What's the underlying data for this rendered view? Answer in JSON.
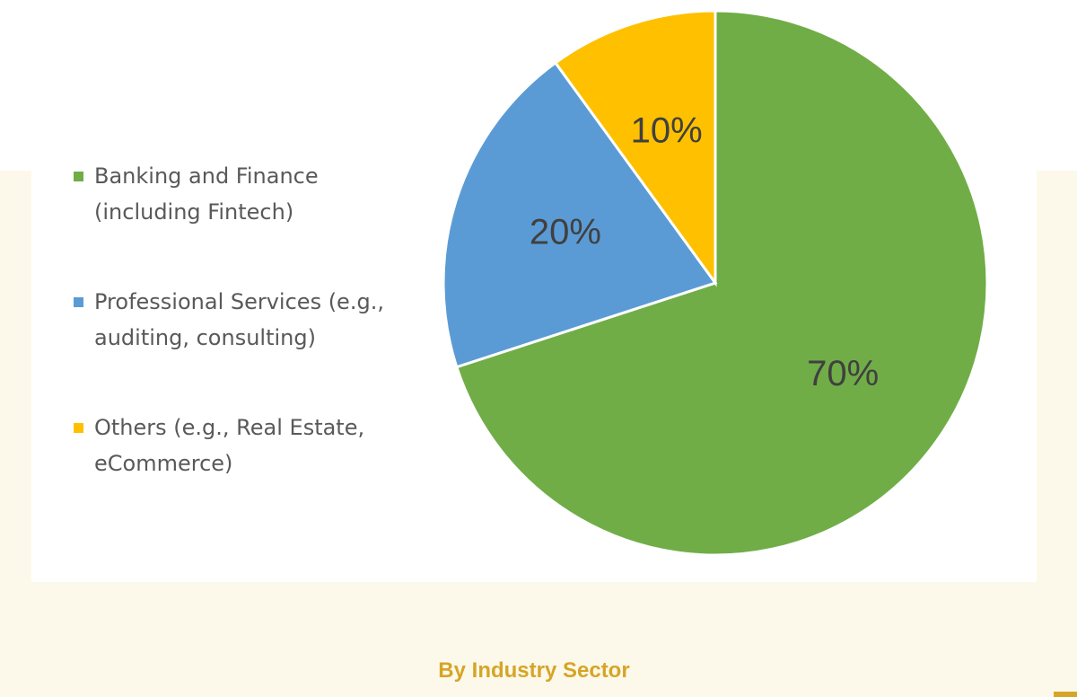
{
  "chart_data": {
    "type": "pie",
    "title": "By Industry Sector",
    "categories": [
      "Banking and Finance (including Fintech)",
      "Professional Services (e.g., auditing, consulting)",
      "Others (e.g., Real Estate, eCommerce)"
    ],
    "values": [
      70,
      20,
      10
    ],
    "value_labels": [
      "70%",
      "20%",
      "10%"
    ],
    "colors": [
      "#70ad47",
      "#5b9bd5",
      "#ffc000"
    ],
    "legend": "left"
  }
}
